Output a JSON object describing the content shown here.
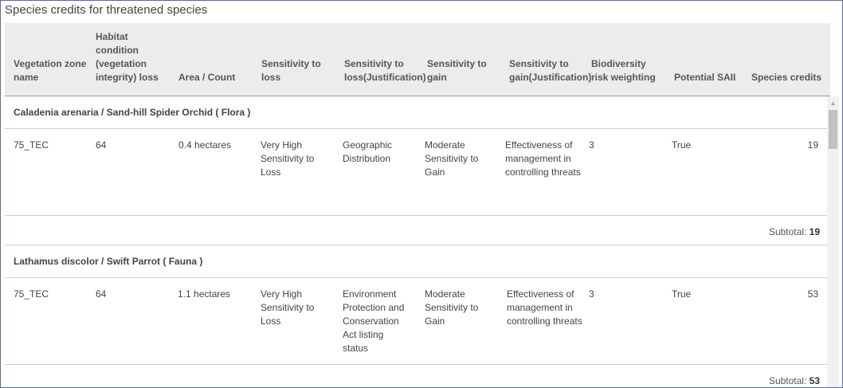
{
  "title": "Species credits for threatened species",
  "columns": {
    "vegetation_zone": "Vegetation zone name",
    "habitat_condition": "Habitat condition (vegetation integrity) loss",
    "area_count": "Area / Count",
    "sensitivity_loss": "Sensitivity to loss",
    "sensitivity_loss_just": "Sensitivity to loss(Justification)",
    "sensitivity_gain": "Sensitivity to gain",
    "sensitivity_gain_just": "Sensitivity to gain(Justification)",
    "biodiversity_risk": "Biodiversity risk weighting",
    "potential_saii": "Potential SAII",
    "species_credits": "Species credits"
  },
  "groups": [
    {
      "heading": "Caladenia arenaria / Sand-hill Spider Orchid ( Flora )",
      "row": {
        "zone": "75_TEC",
        "habitat": "64",
        "area": "0.4 hectares",
        "sens_loss": "Very High Sensitivity to Loss",
        "sens_loss_just": "Geographic Distribution",
        "sens_gain": "Moderate Sensitivity to Gain",
        "sens_gain_just": "Effectiveness of management in controlling threats",
        "risk": "3",
        "saii": "True",
        "credits": "19"
      },
      "subtotal_label": "Subtotal:",
      "subtotal_value": "19"
    },
    {
      "heading": "Lathamus discolor / Swift Parrot ( Fauna )",
      "row": {
        "zone": "75_TEC",
        "habitat": "64",
        "area": "1.1 hectares",
        "sens_loss": "Very High Sensitivity to Loss",
        "sens_loss_just": "Environment Protection and Conservation Act listing status",
        "sens_gain": "Moderate Sensitivity to Gain",
        "sens_gain_just": "Effectiveness of management in controlling threats",
        "risk": "3",
        "saii": "True",
        "credits": "53"
      },
      "subtotal_label": "Subtotal:",
      "subtotal_value": "53"
    }
  ]
}
